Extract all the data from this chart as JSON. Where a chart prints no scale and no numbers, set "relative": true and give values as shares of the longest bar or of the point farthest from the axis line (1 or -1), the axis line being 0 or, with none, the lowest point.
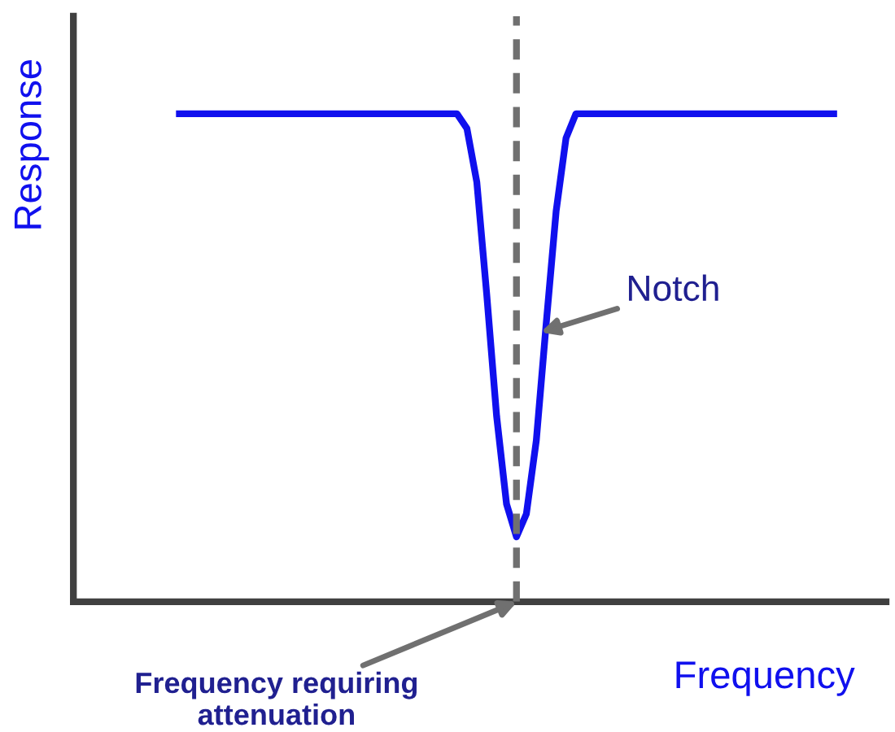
{
  "chart_data": {
    "type": "line",
    "relative": true,
    "xlabel": "Frequency",
    "ylabel": "Response",
    "marker": "none",
    "line_style": "solid",
    "categories": [
      null,
      null,
      null,
      null,
      null,
      null,
      null,
      null,
      null,
      null,
      null,
      null,
      null,
      null,
      null,
      null,
      null,
      null,
      null,
      null,
      null,
      null,
      null,
      null,
      null,
      null,
      null,
      null,
      null,
      null,
      null,
      null,
      null,
      null,
      null,
      null,
      null,
      null,
      null,
      null,
      null,
      null,
      null,
      null,
      null,
      null,
      null,
      null,
      null,
      null,
      null,
      null,
      null,
      null,
      null,
      null,
      null,
      null,
      null,
      null,
      null,
      null,
      null,
      null,
      null,
      null,
      null
    ],
    "series": [
      {
        "color": "#1010ee",
        "values": [
          1,
          1,
          1,
          1,
          1,
          1,
          1,
          1,
          1,
          1,
          1,
          1,
          1,
          1,
          1,
          1,
          1,
          1,
          1,
          1,
          1,
          1,
          1,
          1,
          1,
          1,
          1,
          1,
          1,
          0.97,
          0.86,
          0.63,
          0.38,
          0.2,
          0.133,
          0.18,
          0.33,
          0.57,
          0.8,
          0.95,
          1,
          1,
          1,
          1,
          1,
          1,
          1,
          1,
          1,
          1,
          1,
          1,
          1,
          1,
          1,
          1,
          1,
          1,
          1,
          1,
          1,
          1,
          1,
          1,
          1,
          1,
          1
        ]
      }
    ],
    "annotations": [
      "Notch",
      "Frequency requiring\nattenuation"
    ]
  }
}
